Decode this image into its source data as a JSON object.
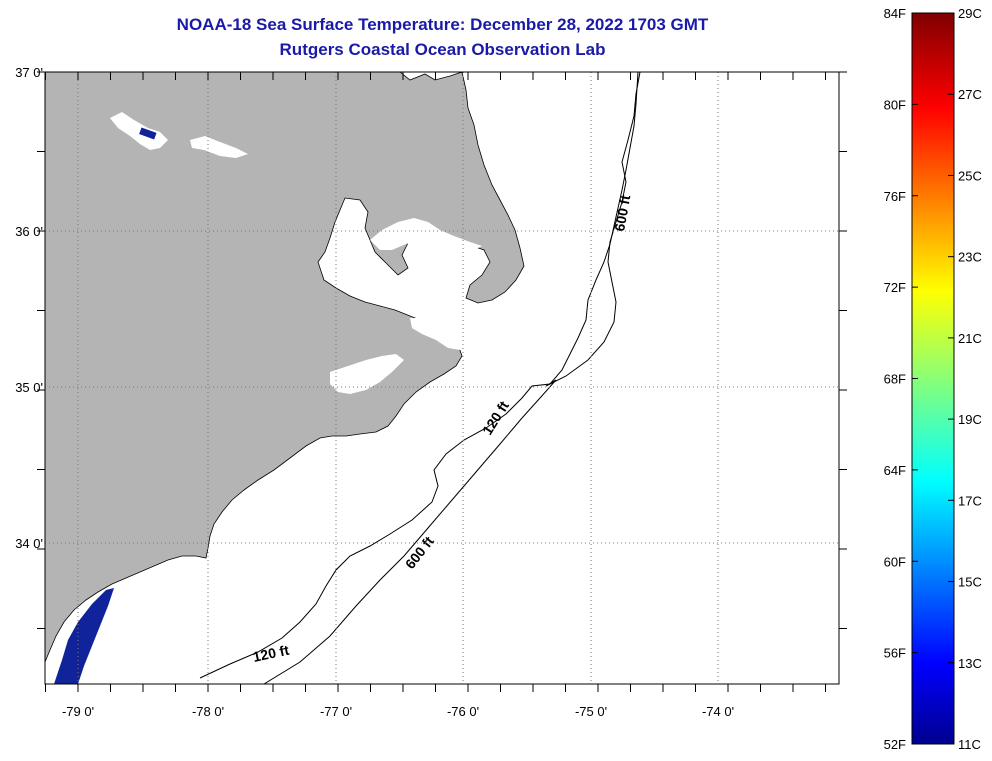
{
  "header": {
    "title": "NOAA-18 Sea Surface Temperature:  December 28, 2022 1703 GMT",
    "subtitle": "Rutgers Coastal Ocean Observation Lab"
  },
  "map": {
    "lon_labels": [
      "-79 0'",
      "-78 0'",
      "-77 0'",
      "-76 0'",
      "-75 0'",
      "-74 0'"
    ],
    "lat_labels": [
      "37 0'",
      "36 0'",
      "35 0'",
      "34 0'"
    ],
    "contour_labels": {
      "c600_north": "600 ft",
      "c600_south": "600 ft",
      "c120_mid": "120 ft",
      "c120_south": "120 ft"
    },
    "colors": {
      "land": "#b4b4b4",
      "water": "#ffffff",
      "cold_sst": "#10239a",
      "contour": "#000000"
    }
  },
  "colorbar": {
    "fahrenheit_labels": [
      "84F",
      "80F",
      "76F",
      "72F",
      "68F",
      "64F",
      "60F",
      "56F",
      "52F"
    ],
    "celsius_labels": [
      "29C",
      "27C",
      "25C",
      "23C",
      "21C",
      "19C",
      "17C",
      "15C",
      "13C",
      "11C"
    ],
    "range_c": [
      11,
      29
    ],
    "range_f": [
      52,
      84
    ],
    "colormap": "jet"
  }
}
